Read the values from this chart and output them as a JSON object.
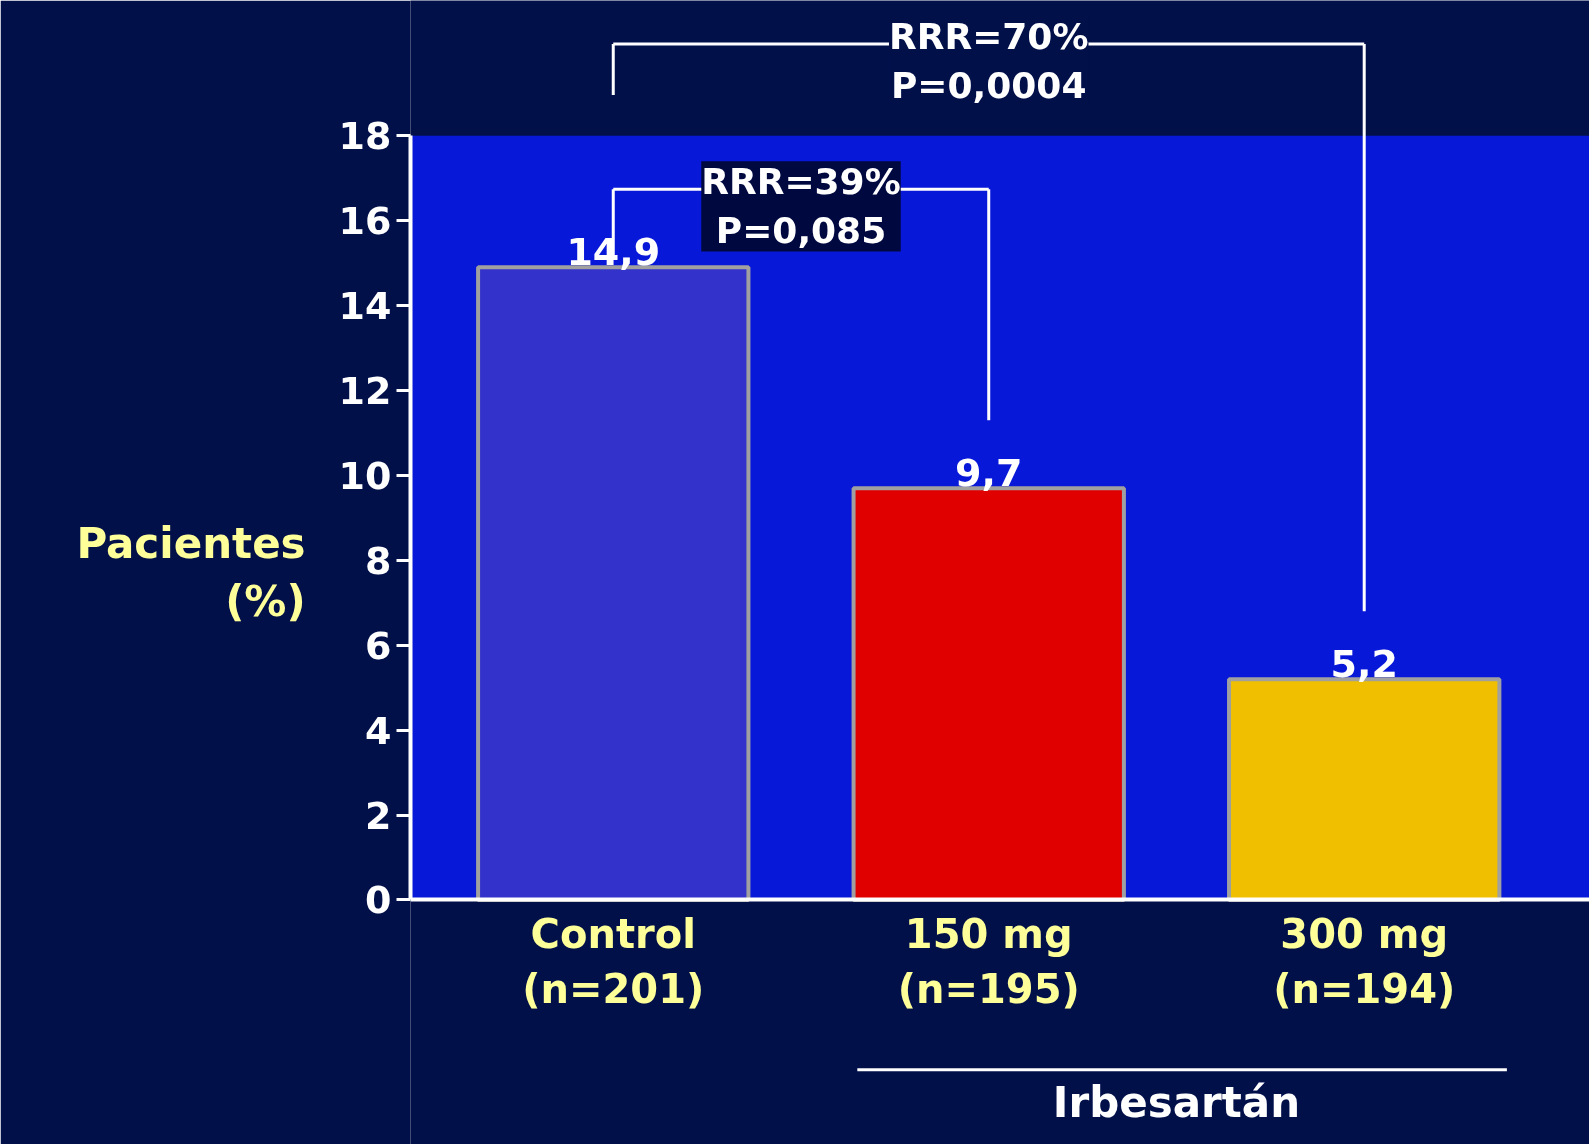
{
  "chart_data": {
    "type": "bar",
    "ylabel": "Pacientes (%)",
    "categories": [
      "Control\n(n=201)",
      "150 mg\n(n=195)",
      "300 mg\n(n=194)"
    ],
    "values": [
      14.9,
      9.7,
      5.2
    ],
    "colors": [
      "#3333cc",
      "#e00000",
      "#f0c000"
    ],
    "value_labels": [
      "14,9",
      "9,7",
      "5,2"
    ],
    "ylim": [
      0,
      18
    ],
    "yticks": [
      0,
      2,
      4,
      6,
      8,
      10,
      12,
      14,
      16,
      18
    ],
    "annotations": [
      "RRR=39%\nP=0,085",
      "RRR=70%\nP=0,0004",
      "Irbesartán"
    ]
  }
}
